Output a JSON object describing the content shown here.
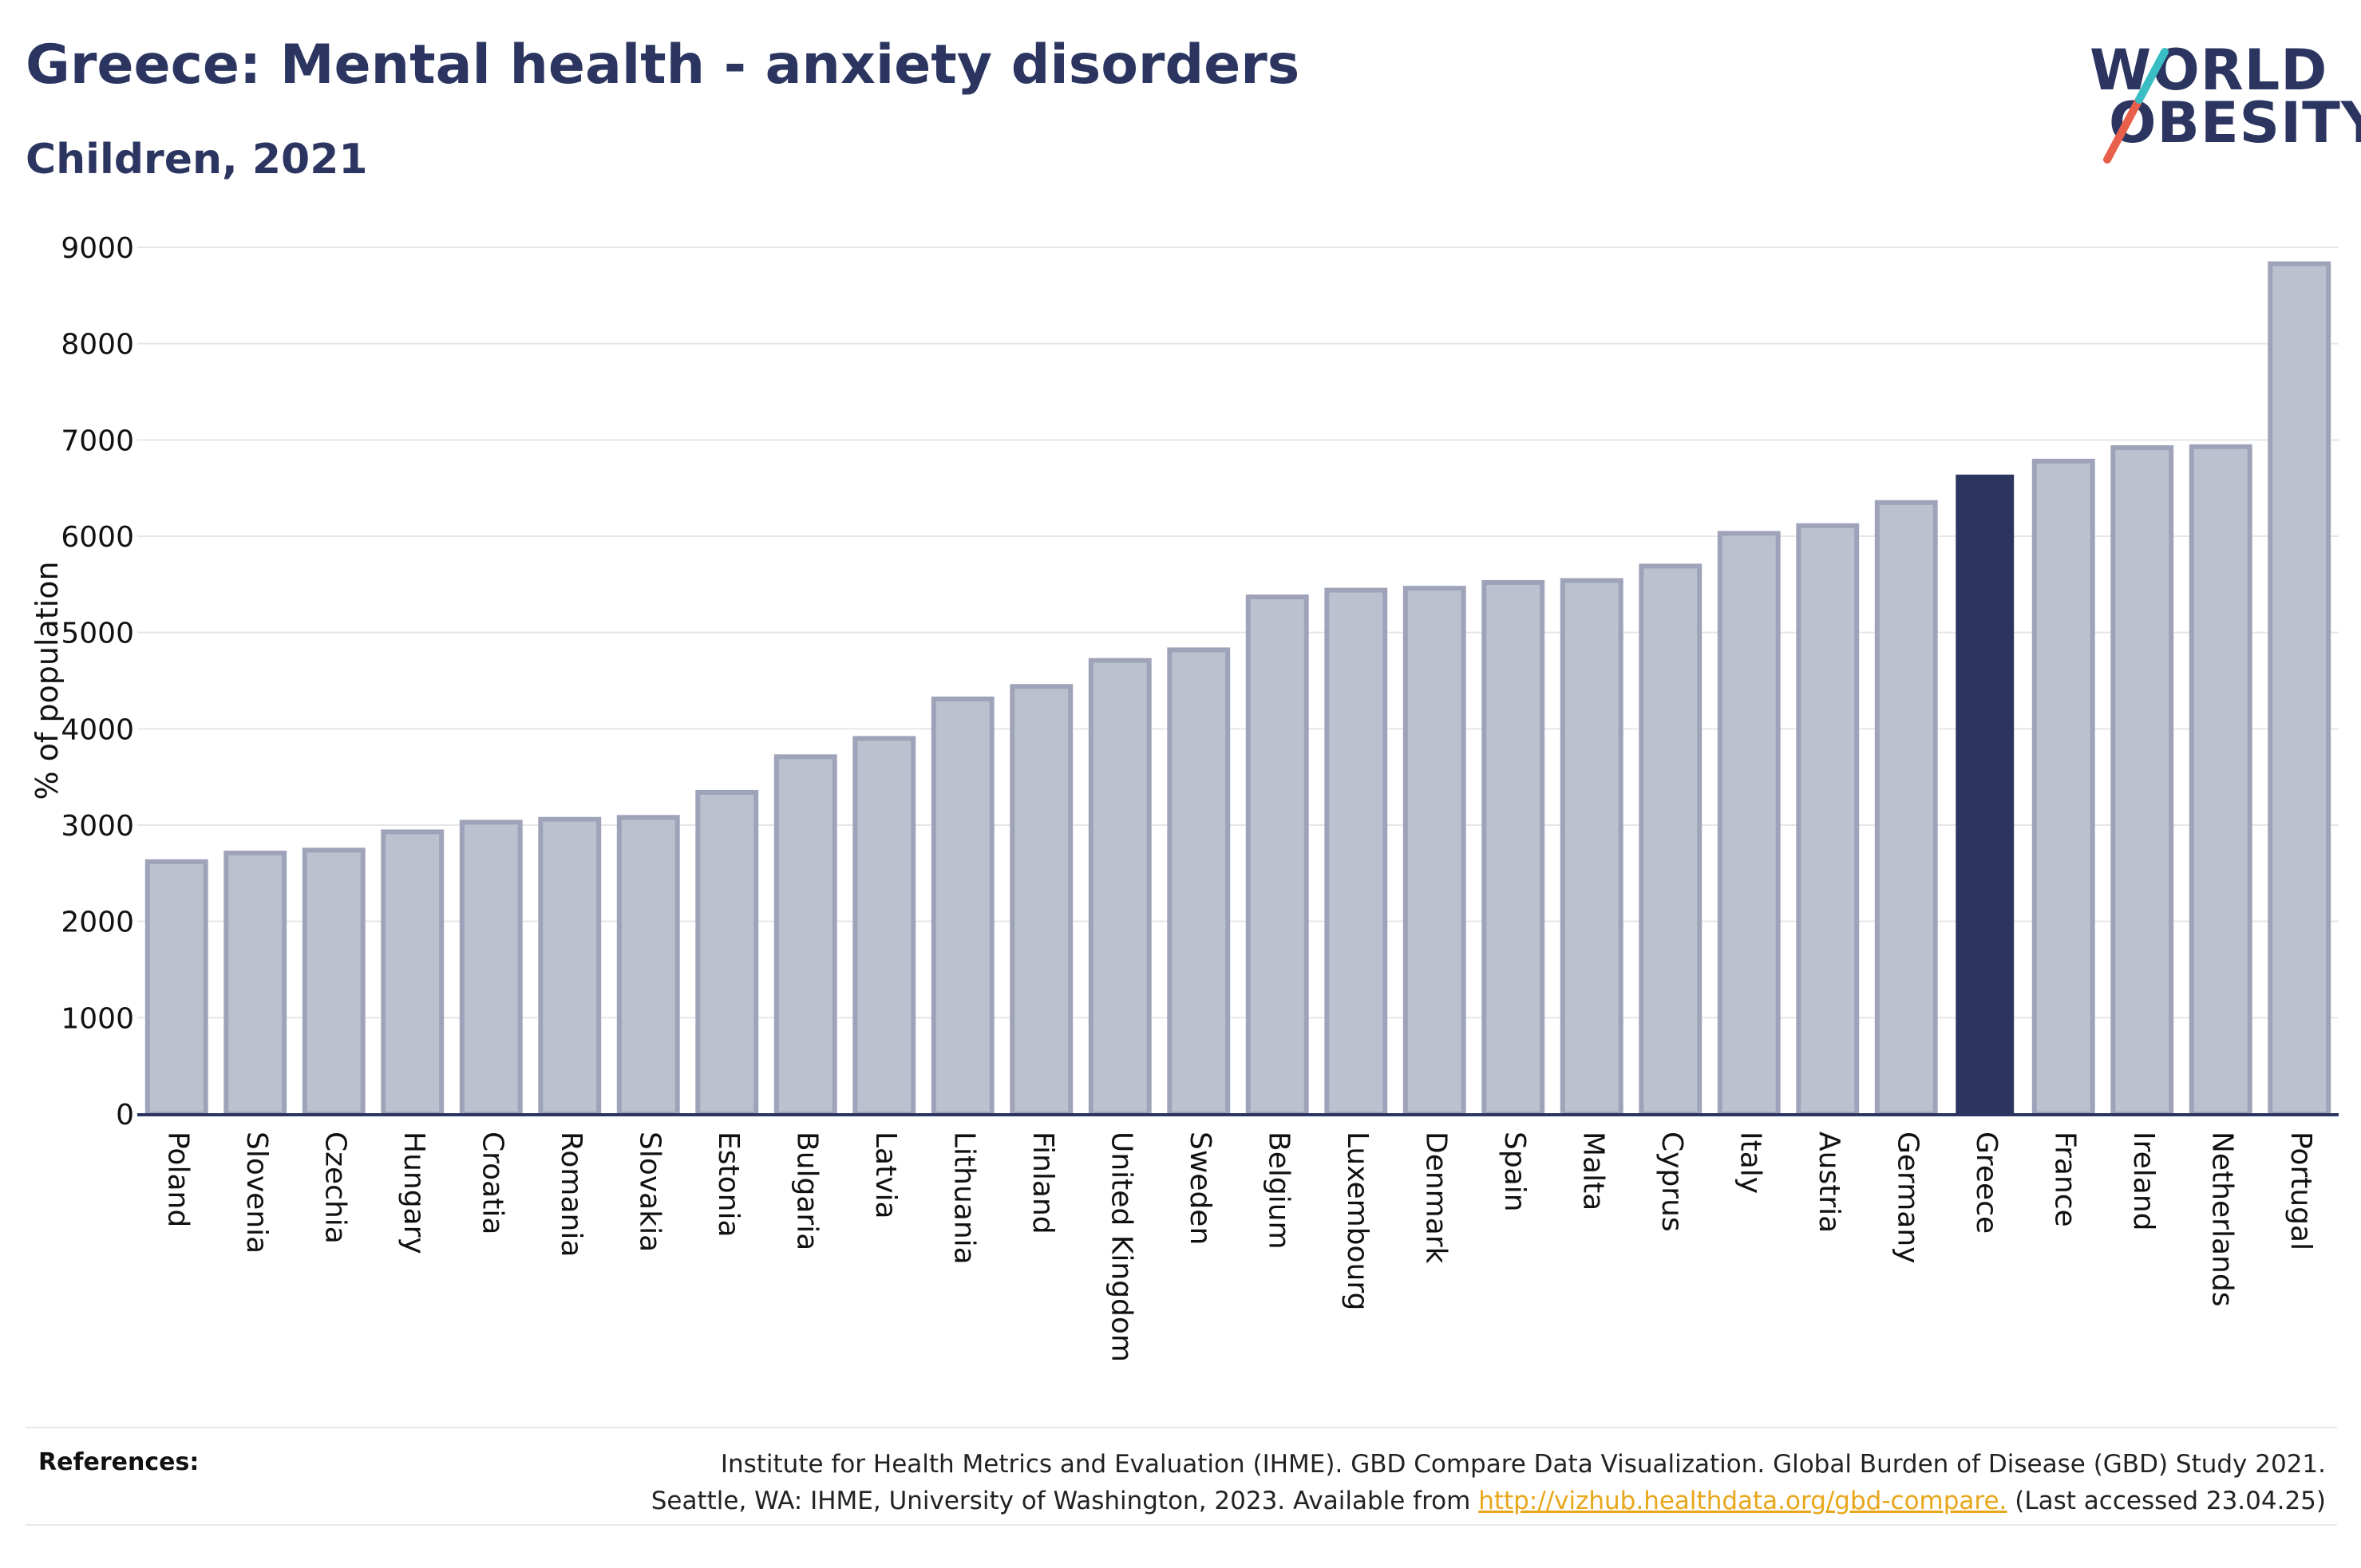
{
  "header": {
    "title": "Greece: Mental health - anxiety disorders",
    "subtitle": "Children, 2021"
  },
  "logo": {
    "line1": "WORLD",
    "line2": "OBESITY",
    "slash_colors": [
      "#e8604c",
      "#3bbdc4"
    ]
  },
  "colors": {
    "default_bar_fill": "#bdc1cf",
    "default_bar_stroke": "#9ea3b9",
    "highlight_bar": "#2b3560",
    "title": "#2b3560",
    "link": "#e8a61a"
  },
  "chart_data": {
    "type": "bar",
    "ylabel": "% of population",
    "ylim": [
      0,
      9000
    ],
    "yticks": [
      0,
      1000,
      2000,
      3000,
      4000,
      5000,
      6000,
      7000,
      8000,
      9000
    ],
    "grid": true,
    "highlight": "Greece",
    "categories": [
      "Poland",
      "Slovenia",
      "Czechia",
      "Hungary",
      "Croatia",
      "Romania",
      "Slovakia",
      "Estonia",
      "Bulgaria",
      "Latvia",
      "Lithuania",
      "Finland",
      "United Kingdom",
      "Sweden",
      "Belgium",
      "Luxembourg",
      "Denmark",
      "Spain",
      "Malta",
      "Cyprus",
      "Italy",
      "Austria",
      "Germany",
      "Greece",
      "France",
      "Ireland",
      "Netherlands",
      "Portugal"
    ],
    "values": [
      2620,
      2710,
      2740,
      2930,
      3030,
      3060,
      3080,
      3340,
      3710,
      3900,
      4310,
      4440,
      4710,
      4820,
      5370,
      5440,
      5460,
      5520,
      5540,
      5690,
      6030,
      6110,
      6350,
      6640,
      6780,
      6920,
      6930,
      8830
    ]
  },
  "references": {
    "label": "References:",
    "line1": "Institute for Health Metrics and Evaluation (IHME). GBD Compare Data Visualization. Global Burden of Disease (GBD) Study 2021.",
    "line2_prefix": "Seattle, WA: IHME, University of Washington, 2023. Available from",
    "link_text": "http://vizhub.healthdata.org/gbd-compare.",
    "line2_suffix": "(Last accessed 23.04.25)"
  }
}
